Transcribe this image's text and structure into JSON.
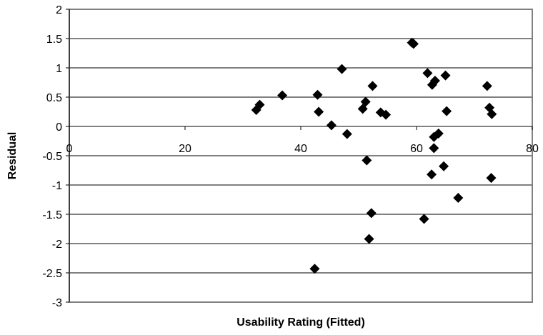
{
  "chart_data": {
    "type": "scatter",
    "title": "",
    "xlabel": "Usability Rating (Fitted)",
    "ylabel": "Residual",
    "xlim": [
      0,
      80
    ],
    "ylim": [
      -3,
      2
    ],
    "x_ticks": [
      0,
      20,
      40,
      60,
      80
    ],
    "y_ticks": [
      2,
      1.5,
      1,
      0.5,
      0,
      -0.5,
      -1,
      -1.5,
      -2,
      -2.5,
      -3
    ],
    "grid": "horizontal",
    "legend": "none",
    "marker": "diamond",
    "marker_color": "#000000",
    "points": [
      {
        "x": 32.3,
        "y": 0.28
      },
      {
        "x": 32.9,
        "y": 0.37
      },
      {
        "x": 36.8,
        "y": 0.53
      },
      {
        "x": 42.4,
        "y": -2.43
      },
      {
        "x": 42.9,
        "y": 0.54
      },
      {
        "x": 43.1,
        "y": 0.25
      },
      {
        "x": 45.3,
        "y": 0.02
      },
      {
        "x": 47.1,
        "y": 0.98
      },
      {
        "x": 48.0,
        "y": -0.13
      },
      {
        "x": 50.7,
        "y": 0.3
      },
      {
        "x": 51.2,
        "y": 0.42
      },
      {
        "x": 51.4,
        "y": -0.58
      },
      {
        "x": 51.8,
        "y": -1.92
      },
      {
        "x": 52.2,
        "y": -1.48
      },
      {
        "x": 52.4,
        "y": 0.69
      },
      {
        "x": 53.8,
        "y": 0.24
      },
      {
        "x": 54.7,
        "y": 0.2
      },
      {
        "x": 59.2,
        "y": 1.43
      },
      {
        "x": 59.5,
        "y": 1.41
      },
      {
        "x": 61.3,
        "y": -1.58
      },
      {
        "x": 61.9,
        "y": 0.91
      },
      {
        "x": 62.6,
        "y": -0.82
      },
      {
        "x": 62.7,
        "y": 0.71
      },
      {
        "x": 63.0,
        "y": -0.37
      },
      {
        "x": 63.0,
        "y": -0.18
      },
      {
        "x": 63.2,
        "y": 0.78
      },
      {
        "x": 63.8,
        "y": -0.12
      },
      {
        "x": 64.7,
        "y": -0.68
      },
      {
        "x": 65.0,
        "y": 0.87
      },
      {
        "x": 65.2,
        "y": 0.26
      },
      {
        "x": 67.2,
        "y": -1.22
      },
      {
        "x": 72.2,
        "y": 0.69
      },
      {
        "x": 72.6,
        "y": 0.32
      },
      {
        "x": 72.9,
        "y": -0.88
      },
      {
        "x": 73.0,
        "y": 0.21
      }
    ]
  }
}
